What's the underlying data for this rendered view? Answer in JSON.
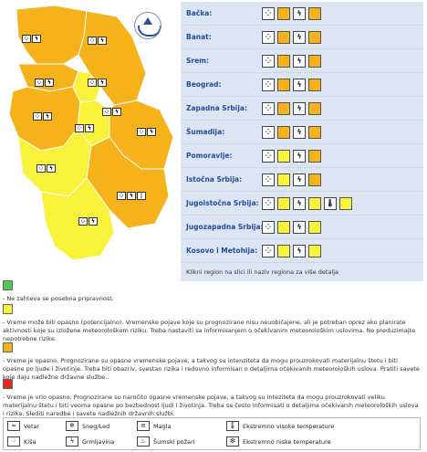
{
  "regions": [
    {
      "name": "Bačka:",
      "icons": [
        "wind",
        "thunder"
      ],
      "level_colors": [
        "#f5b21b",
        "#f5b21b"
      ]
    },
    {
      "name": "Banat:",
      "icons": [
        "wind",
        "thunder"
      ],
      "level_colors": [
        "#f5b21b",
        "#f5b21b"
      ]
    },
    {
      "name": "Srem:",
      "icons": [
        "wind",
        "thunder"
      ],
      "level_colors": [
        "#f5b21b",
        "#f5b21b"
      ]
    },
    {
      "name": "Beograd:",
      "icons": [
        "wind",
        "thunder"
      ],
      "level_colors": [
        "#f5b21b",
        "#f5b21b"
      ]
    },
    {
      "name": "Zapadna Srbija:",
      "icons": [
        "wind",
        "thunder"
      ],
      "level_colors": [
        "#f5b21b",
        "#f5b21b"
      ]
    },
    {
      "name": "Šumadija:",
      "icons": [
        "wind",
        "thunder"
      ],
      "level_colors": [
        "#f5b21b",
        "#f5b21b"
      ]
    },
    {
      "name": "Pomoravlje:",
      "icons": [
        "wind",
        "thunder"
      ],
      "level_colors": [
        "#f9f23a",
        "#f5b21b"
      ]
    },
    {
      "name": "Istočna Srbija:",
      "icons": [
        "wind",
        "thunder"
      ],
      "level_colors": [
        "#f9f23a",
        "#f5b21b"
      ]
    },
    {
      "name": "Jugoistočna Srbija:",
      "icons": [
        "wind",
        "thunder",
        "heat"
      ],
      "level_colors": [
        "#f9f23a",
        "#f9f23a",
        "#f9f23a"
      ]
    },
    {
      "name": "Jugozapadna Srbija:",
      "icons": [
        "wind",
        "thunder"
      ],
      "level_colors": [
        "#f9f23a",
        "#f9f23a"
      ]
    },
    {
      "name": "Kosovo i Metohija:",
      "icons": [
        "wind",
        "thunder"
      ],
      "level_colors": [
        "#f9f23a",
        "#f9f23a"
      ]
    }
  ],
  "hint": "Klikni region na slici ili naziv regiona za više detalja",
  "legend": [
    {
      "color": "#4ccb4c",
      "text": "- Ne zahteva se posebna pripravnost."
    },
    {
      "color": "#f9f23a",
      "text": "- Vreme može biti opasno (potencijalno). Vremenske pojave koje su prognozirane nisu neuobičajene, ali je potreban oprez ako planirate aktivnosti koje su izložene meteorološkom riziku. Treba nastaviti sa informisanjem o očekivanim meteorološkim uslovima. Ne preduzimajte nepotrebne rizike."
    },
    {
      "color": "#f5b21b",
      "text": "- Vreme je opasno. Prognozirane su opasne vremenske pojave, a takvog su intenziteta da mogu prouzrokovati materijalnu štetu i biti opasne po ljude i životinje. Treba biti obazriv, svestan rizika i redovno informisan o detaljima očekivanih meteoroloških uslova. Pratiti savete koje daju nadležne državne službe.."
    },
    {
      "color": "#e5261f",
      "text": "- Vreme je vrlo opasno. Prognozirane su naročito opasne vremenske pojave, a takvog su inteziteta da mogu prouzrokovati veliku materijalnu štetu i biti veoma opasne po bezbednost ljudi i životinja. Treba se često informisati o detaljima očekivanih meteoroloških uslova i rizika. Slediti naredbe i savete nadležnih državnih službi."
    }
  ],
  "footer": {
    "row1": [
      "Vetar",
      "Sneg/Led",
      "Magla",
      "Ekstremno visoke temperature"
    ],
    "row2": [
      "Kiša",
      "Grmljavina",
      "Šumski požari",
      "Ekstremno niske temperature"
    ]
  }
}
